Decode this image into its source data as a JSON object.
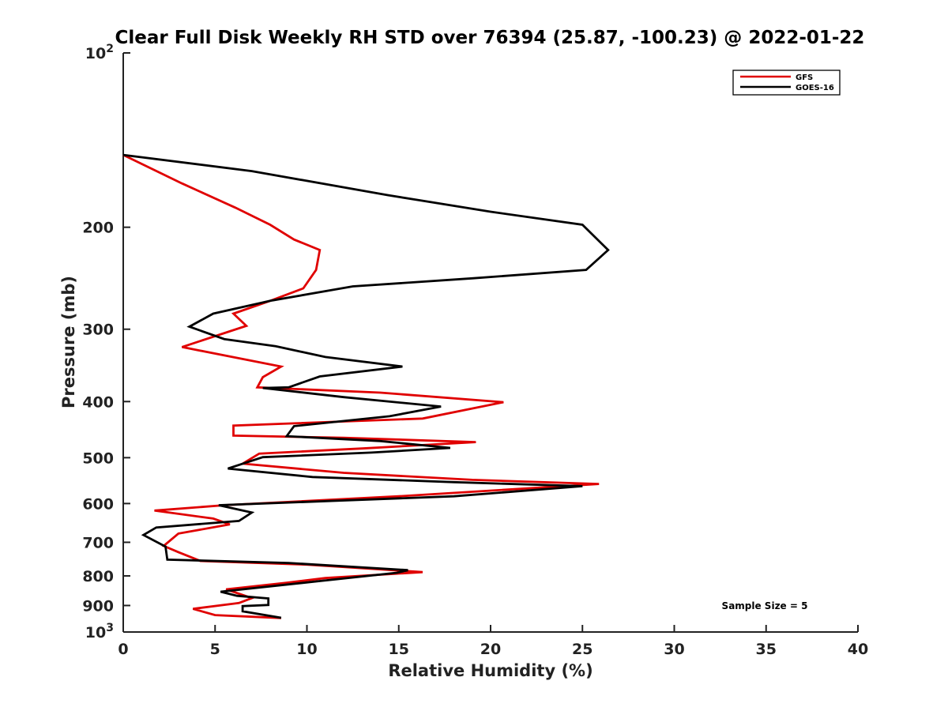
{
  "chart_data": {
    "type": "line",
    "title": "Clear Full Disk Weekly RH STD over 76394 (25.87, -100.23) @ 2022-01-22",
    "xlabel": "Relative Humidity (%)",
    "ylabel": "Pressure (mb)",
    "xlim": [
      0,
      40
    ],
    "ylim": [
      100,
      1000
    ],
    "y_scale": "log",
    "y_reversed": true,
    "x_ticks": [
      "0",
      "5",
      "10",
      "15",
      "20",
      "25",
      "30",
      "35",
      "40"
    ],
    "y_ticks": [
      {
        "value": 100,
        "base": "10",
        "exp": "2"
      },
      {
        "value": 200,
        "label": "200"
      },
      {
        "value": 300,
        "label": "300"
      },
      {
        "value": 400,
        "label": "400"
      },
      {
        "value": 500,
        "label": "500"
      },
      {
        "value": 600,
        "label": "600"
      },
      {
        "value": 700,
        "label": "700"
      },
      {
        "value": 800,
        "label": "800"
      },
      {
        "value": 900,
        "label": "900"
      },
      {
        "value": 1000,
        "base": "10",
        "exp": "3"
      }
    ],
    "legend_position": "top-right",
    "annotation": "Sample Size = 5",
    "series": [
      {
        "name": "GFS",
        "color": "#e00000",
        "points": [
          [
            0.0,
            150
          ],
          [
            3.2,
            168
          ],
          [
            6.1,
            185
          ],
          [
            8.0,
            198
          ],
          [
            9.3,
            210
          ],
          [
            10.7,
            219
          ],
          [
            10.5,
            237
          ],
          [
            9.8,
            255
          ],
          [
            8.0,
            268
          ],
          [
            6.0,
            282
          ],
          [
            6.7,
            296
          ],
          [
            3.2,
            322
          ],
          [
            8.6,
            348
          ],
          [
            7.6,
            363
          ],
          [
            7.3,
            378
          ],
          [
            14.0,
            386
          ],
          [
            20.7,
            401
          ],
          [
            16.3,
            428
          ],
          [
            6.0,
            440
          ],
          [
            6.0,
            458
          ],
          [
            12.0,
            462
          ],
          [
            19.2,
            470
          ],
          [
            13.0,
            482
          ],
          [
            7.4,
            492
          ],
          [
            6.5,
            512
          ],
          [
            12.0,
            531
          ],
          [
            19.0,
            546
          ],
          [
            25.9,
            555
          ],
          [
            15.0,
            583
          ],
          [
            5.5,
            604
          ],
          [
            1.7,
            617
          ],
          [
            4.9,
            637
          ],
          [
            5.8,
            652
          ],
          [
            3.0,
            676
          ],
          [
            2.2,
            710
          ],
          [
            3.0,
            728
          ],
          [
            4.2,
            754
          ],
          [
            10.0,
            765
          ],
          [
            16.3,
            788
          ],
          [
            11.0,
            807
          ],
          [
            8.9,
            822
          ],
          [
            5.6,
            844
          ],
          [
            7.0,
            874
          ],
          [
            6.3,
            891
          ],
          [
            3.8,
            912
          ],
          [
            5.0,
            935
          ],
          [
            8.6,
            946
          ]
        ]
      },
      {
        "name": "GOES-16",
        "color": "#000000",
        "points": [
          [
            0.0,
            150
          ],
          [
            7.0,
            160
          ],
          [
            14.4,
            176
          ],
          [
            20.0,
            188
          ],
          [
            25.0,
            198
          ],
          [
            26.4,
            219
          ],
          [
            25.2,
            237
          ],
          [
            19.0,
            245
          ],
          [
            12.5,
            253
          ],
          [
            8.0,
            268
          ],
          [
            4.9,
            282
          ],
          [
            3.6,
            297
          ],
          [
            5.5,
            312
          ],
          [
            8.3,
            321
          ],
          [
            11.0,
            335
          ],
          [
            15.2,
            348
          ],
          [
            10.7,
            362
          ],
          [
            9.0,
            378
          ],
          [
            7.6,
            379
          ],
          [
            12.0,
            393
          ],
          [
            17.3,
            408
          ],
          [
            14.5,
            424
          ],
          [
            9.3,
            441
          ],
          [
            8.9,
            459
          ],
          [
            14.0,
            468
          ],
          [
            17.8,
            481
          ],
          [
            13.5,
            490
          ],
          [
            7.6,
            499
          ],
          [
            5.7,
            522
          ],
          [
            10.3,
            540
          ],
          [
            18.0,
            551
          ],
          [
            25.0,
            560
          ],
          [
            18.0,
            583
          ],
          [
            5.2,
            604
          ],
          [
            7.0,
            622
          ],
          [
            6.3,
            643
          ],
          [
            1.8,
            660
          ],
          [
            1.1,
            680
          ],
          [
            2.3,
            712
          ],
          [
            2.4,
            750
          ],
          [
            9.0,
            760
          ],
          [
            15.5,
            782
          ],
          [
            14.9,
            790
          ],
          [
            10.5,
            818
          ],
          [
            5.3,
            852
          ],
          [
            6.2,
            866
          ],
          [
            7.9,
            875
          ],
          [
            7.9,
            898
          ],
          [
            6.5,
            902
          ],
          [
            6.5,
            921
          ],
          [
            8.6,
            945
          ]
        ]
      }
    ]
  }
}
